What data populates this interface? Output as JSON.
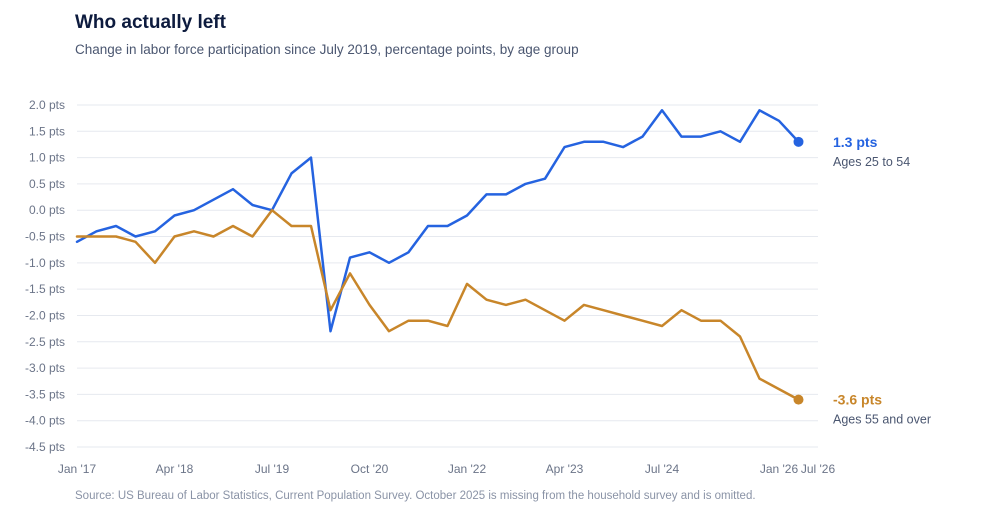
{
  "title": "Who actually left",
  "subtitle": "Change in labor force participation since July 2019, percentage points, by age group",
  "source": "Source: US Bureau of Labor Statistics, Current Population Survey. October 2025 is missing from the household survey and is omitted.",
  "colors": {
    "prime": "#2563e0",
    "older": "#c8862a",
    "grid": "#e6e9ef",
    "axis_text": "#6b7488"
  },
  "chart_data": {
    "type": "line",
    "title": "Who actually left",
    "subtitle": "Change in labor force participation since July 2019, percentage points, by age group",
    "ylim": [
      -4.5,
      2.0
    ],
    "y_ticks": [
      2.0,
      1.5,
      1.0,
      0.5,
      0.0,
      -0.5,
      -1.0,
      -1.5,
      -2.0,
      -2.5,
      -3.0,
      -3.5,
      -4.0,
      -4.5
    ],
    "y_tick_labels": [
      "2.0 pts",
      "1.5 pts",
      "1.0 pts",
      "0.5 pts",
      "0.0 pts",
      "-0.5 pts",
      "-1.0 pts",
      "-1.5 pts",
      "-2.0 pts",
      "-2.5 pts",
      "-3.0 pts",
      "-3.5 pts",
      "-4.0 pts",
      "-4.5 pts"
    ],
    "x_ticks": [
      0,
      15,
      30,
      45,
      60,
      75,
      90,
      108,
      114
    ],
    "x_tick_labels": [
      "Jan '17",
      "Apr '18",
      "Jul '19",
      "Oct '20",
      "Jan '22",
      "Apr '23",
      "Jul '24",
      "Jan '26",
      "Jul '26"
    ],
    "x_domain": [
      0,
      114
    ],
    "grid": "horizontal",
    "series": [
      {
        "name": "Ages 25 to 54",
        "color": "#2563e0",
        "end_label": "1.3 pts",
        "points": [
          [
            0,
            -0.6
          ],
          [
            3,
            -0.4
          ],
          [
            6,
            -0.3
          ],
          [
            9,
            -0.5
          ],
          [
            12,
            -0.4
          ],
          [
            15,
            -0.1
          ],
          [
            18,
            0.0
          ],
          [
            21,
            0.2
          ],
          [
            24,
            0.4
          ],
          [
            27,
            0.1
          ],
          [
            30,
            0.0
          ],
          [
            33,
            0.7
          ],
          [
            36,
            1.0
          ],
          [
            39,
            -2.3
          ],
          [
            42,
            -0.9
          ],
          [
            45,
            -0.8
          ],
          [
            48,
            -1.0
          ],
          [
            51,
            -0.8
          ],
          [
            54,
            -0.3
          ],
          [
            57,
            -0.3
          ],
          [
            60,
            -0.1
          ],
          [
            63,
            0.3
          ],
          [
            66,
            0.3
          ],
          [
            69,
            0.5
          ],
          [
            72,
            0.6
          ],
          [
            75,
            1.2
          ],
          [
            78,
            1.3
          ],
          [
            81,
            1.3
          ],
          [
            84,
            1.2
          ],
          [
            87,
            1.4
          ],
          [
            90,
            1.9
          ],
          [
            93,
            1.4
          ],
          [
            96,
            1.4
          ],
          [
            99,
            1.5
          ],
          [
            102,
            1.3
          ],
          [
            105,
            1.9
          ],
          [
            108,
            1.7
          ],
          [
            111,
            1.3
          ]
        ]
      },
      {
        "name": "Ages 55 and over",
        "color": "#c8862a",
        "end_label": "-3.6 pts",
        "points": [
          [
            0,
            -0.5
          ],
          [
            3,
            -0.5
          ],
          [
            6,
            -0.5
          ],
          [
            9,
            -0.6
          ],
          [
            12,
            -1.0
          ],
          [
            15,
            -0.5
          ],
          [
            18,
            -0.4
          ],
          [
            21,
            -0.5
          ],
          [
            24,
            -0.3
          ],
          [
            27,
            -0.5
          ],
          [
            30,
            0.0
          ],
          [
            33,
            -0.3
          ],
          [
            36,
            -0.3
          ],
          [
            39,
            -1.9
          ],
          [
            42,
            -1.2
          ],
          [
            45,
            -1.8
          ],
          [
            48,
            -2.3
          ],
          [
            51,
            -2.1
          ],
          [
            54,
            -2.1
          ],
          [
            57,
            -2.2
          ],
          [
            60,
            -1.4
          ],
          [
            63,
            -1.7
          ],
          [
            66,
            -1.8
          ],
          [
            69,
            -1.7
          ],
          [
            72,
            -1.9
          ],
          [
            75,
            -2.1
          ],
          [
            78,
            -1.8
          ],
          [
            81,
            -1.9
          ],
          [
            84,
            -2.0
          ],
          [
            87,
            -2.1
          ],
          [
            90,
            -2.2
          ],
          [
            93,
            -1.9
          ],
          [
            96,
            -2.1
          ],
          [
            99,
            -2.1
          ],
          [
            102,
            -2.4
          ],
          [
            105,
            -3.2
          ],
          [
            108,
            -3.4
          ],
          [
            111,
            -3.6
          ]
        ]
      }
    ]
  }
}
